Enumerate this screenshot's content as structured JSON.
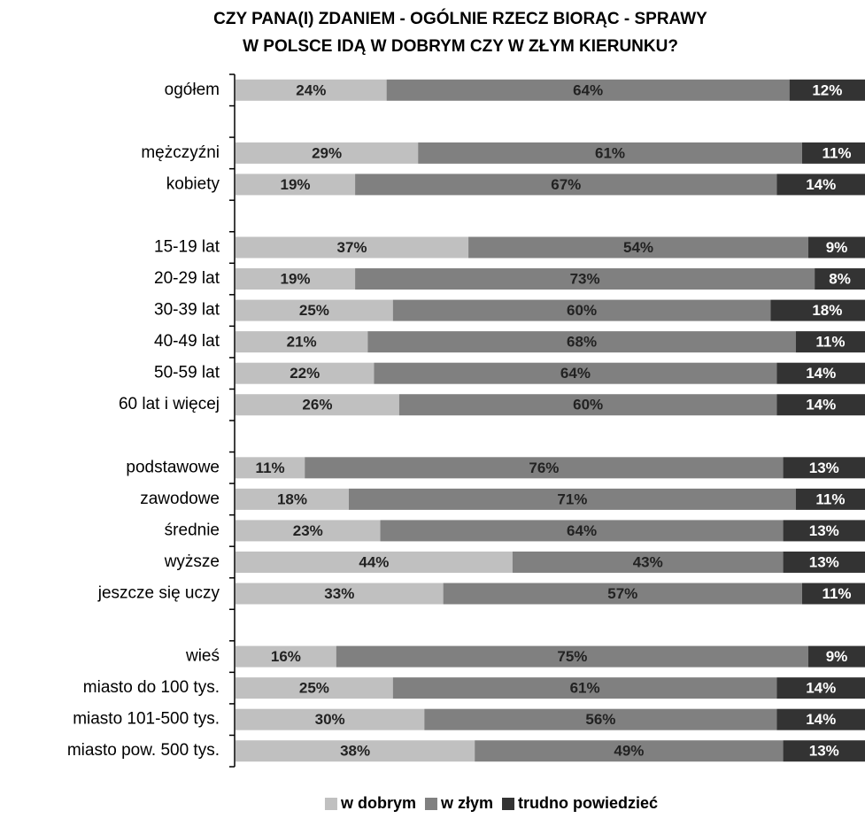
{
  "chart_data": {
    "type": "stacked_bar_horizontal",
    "title": [
      "CZY PANA(I) ZDANIEM - OGÓLNIE RZECZ BIORĄC - SPRAWY",
      "W POLSCE IDĄ W DOBRYM CZY W ZŁYM KIERUNKU?"
    ],
    "categories": [
      "ogółem",
      null,
      "mężczyźni",
      "kobiety",
      null,
      "15-19 lat",
      "20-29 lat",
      "30-39 lat",
      "40-49 lat",
      "50-59 lat",
      "60 lat i więcej",
      null,
      "podstawowe",
      "zawodowe",
      "średnie",
      "wyższe",
      "jeszcze się uczy",
      null,
      "wieś",
      "miasto do 100 tys.",
      "miasto 101-500 tys.",
      "miasto pow. 500 tys."
    ],
    "xlim": [
      0,
      100
    ],
    "series": [
      {
        "name": "w dobrym",
        "color": "#c0c0c0",
        "values": [
          24,
          null,
          29,
          19,
          null,
          37,
          19,
          25,
          21,
          22,
          26,
          null,
          11,
          18,
          23,
          44,
          33,
          null,
          16,
          25,
          30,
          38
        ],
        "value_labels": [
          "24%",
          null,
          "29%",
          "19%",
          null,
          "37%",
          "19%",
          "25%",
          "21%",
          "22%",
          "26%",
          null,
          "11%",
          "18%",
          "23%",
          "44%",
          "33%",
          null,
          "16%",
          "25%",
          "30%",
          "38%"
        ]
      },
      {
        "name": "w złym",
        "color": "#808080",
        "values": [
          64,
          null,
          61,
          67,
          null,
          54,
          73,
          60,
          68,
          64,
          60,
          null,
          76,
          71,
          64,
          43,
          57,
          null,
          75,
          61,
          56,
          49
        ],
        "value_labels": [
          "64%",
          null,
          "61%",
          "67%",
          null,
          "54%",
          "73%",
          "60%",
          "68%",
          "64%",
          "60%",
          null,
          "76%",
          "71%",
          "64%",
          "43%",
          "57%",
          null,
          "75%",
          "61%",
          "56%",
          "49%"
        ]
      },
      {
        "name": "trudno powiedzieć",
        "color": "#333333",
        "values": [
          12,
          null,
          11,
          14,
          null,
          9,
          8,
          18,
          11,
          14,
          14,
          null,
          13,
          11,
          13,
          13,
          11,
          null,
          9,
          14,
          14,
          13
        ],
        "value_labels": [
          "12%",
          null,
          "11%",
          "14%",
          null,
          "9%",
          "8%",
          "18%",
          "11%",
          "14%",
          "14%",
          null,
          "13%",
          "11%",
          "13%",
          "13%",
          "11%",
          null,
          "9%",
          "14%",
          "14%",
          "13%"
        ]
      }
    ]
  }
}
